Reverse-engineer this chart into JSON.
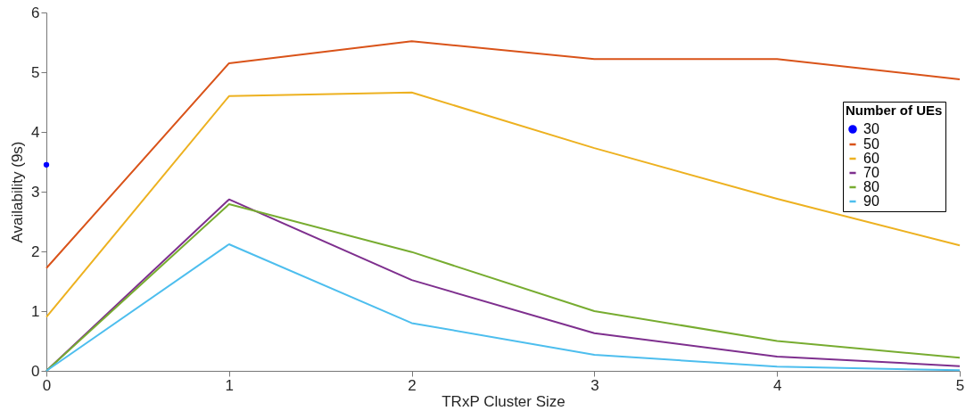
{
  "chart_data": {
    "type": "line",
    "xlabel": "TRxP Cluster Size",
    "ylabel": "Availability (9s)",
    "legend_title": "Number of UEs",
    "legend": "right",
    "grid": false,
    "x": [
      0,
      1,
      2,
      3,
      4,
      5
    ],
    "xlim": [
      0,
      5
    ],
    "xticks": [
      0,
      1,
      2,
      3,
      4,
      5
    ],
    "ylim": [
      0,
      6
    ],
    "yticks": [
      0,
      1,
      2,
      3,
      4,
      5,
      6
    ],
    "series": [
      {
        "name": "30",
        "type": "scatter",
        "marker": "circle",
        "color": "#0000ff",
        "values": [
          3.45,
          null,
          null,
          null,
          null,
          null
        ]
      },
      {
        "name": "50",
        "color": "#d95319",
        "values": [
          1.72,
          5.15,
          5.52,
          5.22,
          5.22,
          4.88
        ]
      },
      {
        "name": "60",
        "color": "#edb120",
        "values": [
          0.9,
          4.6,
          4.66,
          3.73,
          2.88,
          2.1
        ]
      },
      {
        "name": "70",
        "color": "#7e2f8e",
        "values": [
          0,
          2.87,
          1.52,
          0.63,
          0.24,
          0.08
        ]
      },
      {
        "name": "80",
        "color": "#77ac30",
        "values": [
          0,
          2.79,
          1.99,
          1.0,
          0.5,
          0.22
        ]
      },
      {
        "name": "90",
        "color": "#4dbeee",
        "values": [
          0,
          2.12,
          0.8,
          0.27,
          0.07,
          0.01
        ]
      }
    ]
  }
}
